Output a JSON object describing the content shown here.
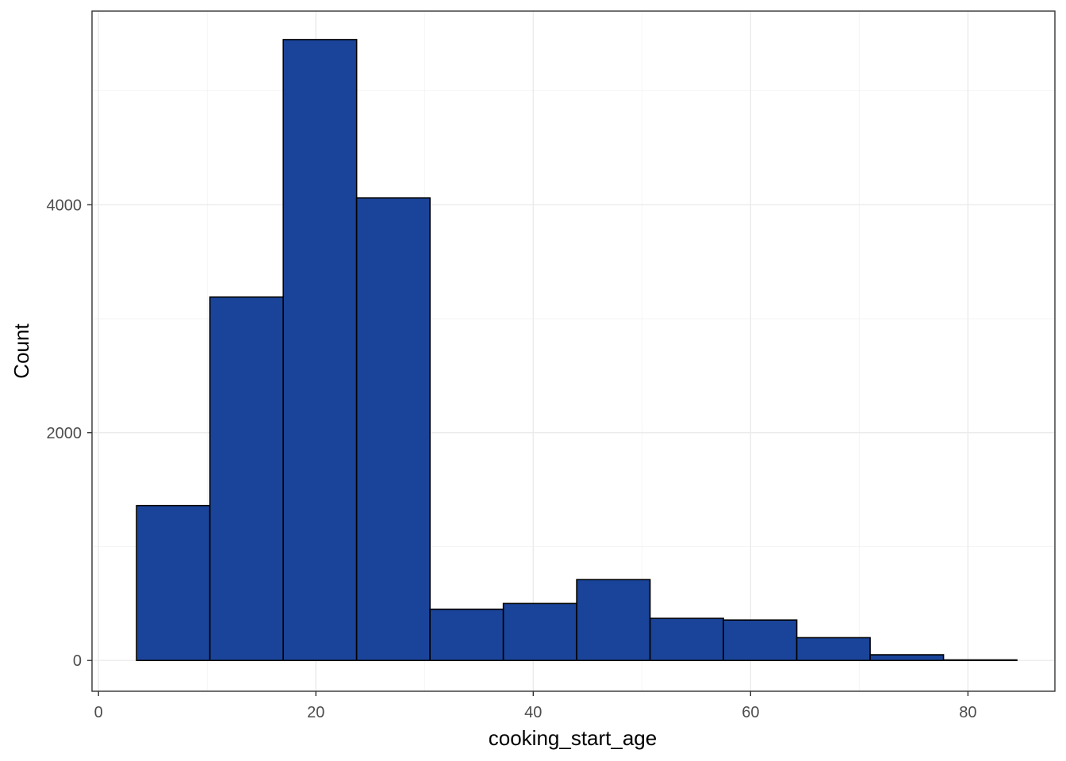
{
  "chart_data": {
    "type": "bar",
    "xlabel": "cooking_start_age",
    "ylabel": "Count",
    "xlim": [
      -0.6,
      88.0
    ],
    "ylim": [
      -270,
      5700
    ],
    "x_ticks": [
      0,
      20,
      40,
      60,
      80
    ],
    "y_ticks": [
      0,
      2000,
      4000
    ],
    "grid": true,
    "bar_fill": "#1a4499",
    "bar_outline": "#000000",
    "bins": [
      {
        "start": 3.5,
        "end": 10.25,
        "count": 1360
      },
      {
        "start": 10.25,
        "end": 17.0,
        "count": 3190
      },
      {
        "start": 17.0,
        "end": 23.75,
        "count": 5450
      },
      {
        "start": 23.75,
        "end": 30.5,
        "count": 4060
      },
      {
        "start": 30.5,
        "end": 37.25,
        "count": 450
      },
      {
        "start": 37.25,
        "end": 44.0,
        "count": 500
      },
      {
        "start": 44.0,
        "end": 50.75,
        "count": 710
      },
      {
        "start": 50.75,
        "end": 57.5,
        "count": 370
      },
      {
        "start": 57.5,
        "end": 64.25,
        "count": 355
      },
      {
        "start": 64.25,
        "end": 71.0,
        "count": 200
      },
      {
        "start": 71.0,
        "end": 77.75,
        "count": 50
      },
      {
        "start": 77.75,
        "end": 84.5,
        "count": 5
      }
    ]
  }
}
